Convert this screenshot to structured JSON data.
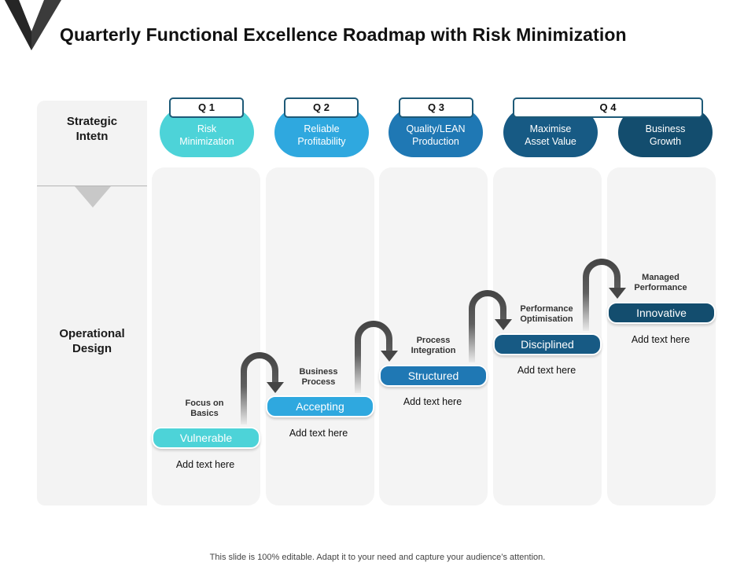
{
  "title": "Quarterly Functional Excellence Roadmap with Risk Minimization",
  "row_labels": {
    "strategic_line1": "Strategic",
    "strategic_line2": "Intetn",
    "operational_line1": "Operational",
    "operational_line2": "Design"
  },
  "quarters": [
    {
      "label": "Q 1"
    },
    {
      "label": "Q 2"
    },
    {
      "label": "Q 3"
    },
    {
      "label": "Q 4"
    }
  ],
  "objectives": [
    {
      "line1": "Risk",
      "line2": "Minimization"
    },
    {
      "line1": "Reliable",
      "line2": "Profitability"
    },
    {
      "line1": "Quality/LEAN",
      "line2": "Production"
    },
    {
      "line1": "Maximise",
      "line2": "Asset Value"
    },
    {
      "line1": "Business",
      "line2": "Growth"
    }
  ],
  "steps": [
    {
      "label": "Vulnerable",
      "caption_line1": "Focus on",
      "caption_line2": "Basics",
      "note": "Add text here"
    },
    {
      "label": "Accepting",
      "caption_line1": "Business",
      "caption_line2": "Process",
      "note": "Add text here"
    },
    {
      "label": "Structured",
      "caption_line1": "Process",
      "caption_line2": "Integration",
      "note": "Add text here"
    },
    {
      "label": "Disciplined",
      "caption_line1": "Performance",
      "caption_line2": "Optimisation",
      "note": "Add text here"
    },
    {
      "label": "Innovative",
      "caption_line1": "Managed",
      "caption_line2": "Performance",
      "note": "Add text here"
    }
  ],
  "colors": {
    "step1": "#4dd3d8",
    "step2": "#2fa8df",
    "step3": "#1f78b4",
    "step4": "#175a84",
    "step5": "#134d6e",
    "arrow": "#454545"
  },
  "footer": "This slide is 100% editable. Adapt it to your need and capture your audience’s attention."
}
